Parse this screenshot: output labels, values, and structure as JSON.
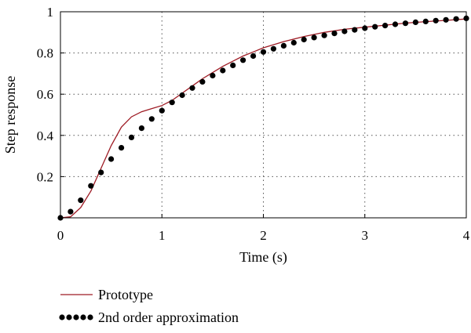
{
  "chart_data": {
    "type": "line",
    "xlabel": "Time (s)",
    "ylabel": "Step response",
    "xlim": [
      0,
      4
    ],
    "ylim": [
      0,
      1
    ],
    "xticks": [
      0,
      1,
      2,
      3,
      4
    ],
    "yticks": [
      0.2,
      0.4,
      0.6,
      0.8,
      1
    ],
    "xtick_labels": [
      "0",
      "1",
      "2",
      "3",
      "4"
    ],
    "ytick_labels": [
      "0.2",
      "0.4",
      "0.6",
      "0.8",
      "1"
    ],
    "grid": true,
    "grid_style": "dotted",
    "legend_position": "below-left",
    "series": [
      {
        "name": "Prototype",
        "style": "solid-line",
        "color": "#9e1b24",
        "x": [
          0,
          0.1,
          0.2,
          0.3,
          0.4,
          0.5,
          0.6,
          0.7,
          0.8,
          0.9,
          1.0,
          1.1,
          1.2,
          1.3,
          1.4,
          1.5,
          1.6,
          1.7,
          1.8,
          1.9,
          2.0,
          2.2,
          2.4,
          2.6,
          2.8,
          3.0,
          3.2,
          3.4,
          3.6,
          3.8,
          4.0
        ],
        "y": [
          0,
          0.005,
          0.05,
          0.13,
          0.24,
          0.35,
          0.44,
          0.49,
          0.515,
          0.53,
          0.545,
          0.57,
          0.605,
          0.64,
          0.675,
          0.705,
          0.735,
          0.76,
          0.785,
          0.805,
          0.825,
          0.855,
          0.88,
          0.9,
          0.915,
          0.925,
          0.935,
          0.945,
          0.952,
          0.958,
          0.965
        ]
      },
      {
        "name": "2nd order approximation",
        "style": "dots",
        "color": "#000000",
        "x": [
          0,
          0.1,
          0.2,
          0.3,
          0.4,
          0.5,
          0.6,
          0.7,
          0.8,
          0.9,
          1.0,
          1.1,
          1.2,
          1.3,
          1.4,
          1.5,
          1.6,
          1.7,
          1.8,
          1.9,
          2.0,
          2.1,
          2.2,
          2.3,
          2.4,
          2.5,
          2.6,
          2.7,
          2.8,
          2.9,
          3.0,
          3.1,
          3.2,
          3.3,
          3.4,
          3.5,
          3.6,
          3.7,
          3.8,
          3.9,
          4.0
        ],
        "y": [
          0,
          0.03,
          0.085,
          0.155,
          0.22,
          0.285,
          0.34,
          0.39,
          0.435,
          0.48,
          0.52,
          0.56,
          0.595,
          0.63,
          0.66,
          0.69,
          0.715,
          0.74,
          0.765,
          0.785,
          0.805,
          0.82,
          0.835,
          0.85,
          0.865,
          0.875,
          0.885,
          0.895,
          0.905,
          0.912,
          0.92,
          0.927,
          0.933,
          0.939,
          0.944,
          0.949,
          0.953,
          0.957,
          0.961,
          0.965,
          0.968
        ]
      }
    ]
  }
}
